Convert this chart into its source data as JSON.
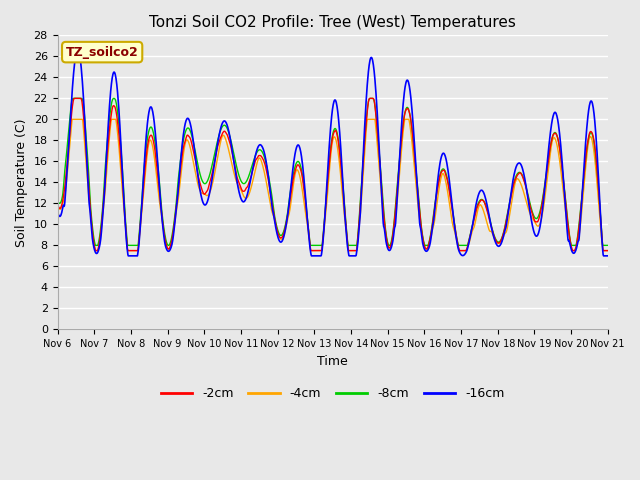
{
  "title": "Tonzi Soil CO2 Profile: Tree (West) Temperatures",
  "xlabel": "Time",
  "ylabel": "Soil Temperature (C)",
  "ylim": [
    0,
    28
  ],
  "yticks": [
    0,
    2,
    4,
    6,
    8,
    10,
    12,
    14,
    16,
    18,
    20,
    22,
    24,
    26,
    28
  ],
  "xtick_labels": [
    "Nov 6",
    "Nov 7",
    "Nov 8",
    "Nov 9",
    "Nov 10",
    "Nov 11",
    "Nov 12",
    "Nov 13",
    "Nov 14",
    "Nov 15",
    "Nov 16",
    "Nov 17",
    "Nov 18",
    "Nov 19",
    "Nov 20",
    "Nov 21"
  ],
  "legend_label": "TZ_soilco2",
  "legend_box_color": "#ffffcc",
  "legend_text_color": "#8b0000",
  "line_colors_2cm": "#ff0000",
  "line_colors_4cm": "#ffa500",
  "line_colors_8cm": "#00cc00",
  "line_colors_16cm": "#0000ff",
  "line_labels": [
    "-2cm",
    "-4cm",
    "-8cm",
    "-16cm"
  ],
  "bg_color": "#e8e8e8",
  "grid_color": "#ffffff",
  "title_fontsize": 11,
  "axis_fontsize": 9,
  "tick_fontsize": 8
}
